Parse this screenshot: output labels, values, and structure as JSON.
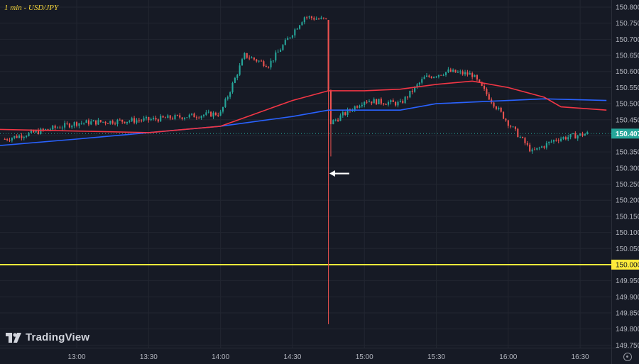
{
  "symbol_label": "1 min - USD/JPY",
  "brand": "TradingView",
  "icons": {
    "logo": "tradingview-logo",
    "settings": "gear-icon",
    "annotation": "arrow-left-icon"
  },
  "colors": {
    "background": "#161a25",
    "grid": "#222631",
    "up": "#26a69a",
    "down": "#ef5350",
    "ma_fast": "#2962ff",
    "ma_slow": "#f23645",
    "level": "#ffeb3b",
    "last_price": "#26a69a"
  },
  "chart_data": {
    "type": "candlestick",
    "title": "1 min - USD/JPY",
    "x_ticks": [
      "13:00",
      "13:30",
      "14:00",
      "14:30",
      "15:00",
      "15:30",
      "16:00",
      "16:30"
    ],
    "y_ticks": [
      "150.800",
      "150.750",
      "150.700",
      "150.650",
      "150.600",
      "150.550",
      "150.500",
      "150.450",
      "150.400",
      "150.350",
      "150.300",
      "150.250",
      "150.200",
      "150.150",
      "150.100",
      "150.050",
      "150.000",
      "149.950",
      "149.900",
      "149.850",
      "149.800",
      "149.750"
    ],
    "ylim": [
      149.742,
      150.822
    ],
    "xlim": [
      "12:28",
      "16:43"
    ],
    "last_price": "150.407",
    "horizontal_level": "150.000",
    "spike": {
      "time": "14:45",
      "open": 150.76,
      "high": 150.76,
      "low": 149.815,
      "close": 150.54
    },
    "ohlc_sampled": [
      {
        "time": "12:30",
        "close": 150.39
      },
      {
        "time": "13:00",
        "close": 150.44
      },
      {
        "time": "13:30",
        "close": 150.45
      },
      {
        "time": "14:00",
        "close": 150.47
      },
      {
        "time": "14:10",
        "close": 150.65
      },
      {
        "time": "14:20",
        "close": 150.62
      },
      {
        "time": "14:35",
        "close": 150.77
      },
      {
        "time": "14:44",
        "close": 150.76
      },
      {
        "time": "14:46",
        "close": 150.44
      },
      {
        "time": "15:00",
        "close": 150.51
      },
      {
        "time": "15:15",
        "close": 150.5
      },
      {
        "time": "15:25",
        "close": 150.58
      },
      {
        "time": "15:35",
        "close": 150.6
      },
      {
        "time": "15:45",
        "close": 150.59
      },
      {
        "time": "16:00",
        "close": 150.44
      },
      {
        "time": "16:10",
        "close": 150.35
      },
      {
        "time": "16:20",
        "close": 150.39
      },
      {
        "time": "16:33",
        "close": 150.407
      }
    ],
    "series": [
      {
        "points": [
          [
            "12:28",
            150.37
          ],
          [
            "13:00",
            150.39
          ],
          [
            "13:30",
            150.41
          ],
          [
            "14:00",
            150.43
          ],
          [
            "14:30",
            150.46
          ],
          [
            "14:45",
            150.48
          ],
          [
            "15:15",
            150.48
          ],
          [
            "15:30",
            150.5
          ],
          [
            "16:00",
            150.51
          ],
          [
            "16:15",
            150.515
          ],
          [
            "16:41",
            150.51
          ]
        ]
      },
      {
        "points": [
          [
            "12:28",
            150.42
          ],
          [
            "13:00",
            150.415
          ],
          [
            "13:30",
            150.41
          ],
          [
            "14:00",
            150.43
          ],
          [
            "14:15",
            150.47
          ],
          [
            "14:30",
            150.51
          ],
          [
            "14:45",
            150.54
          ],
          [
            "15:00",
            150.54
          ],
          [
            "15:15",
            150.545
          ],
          [
            "15:30",
            150.56
          ],
          [
            "15:45",
            150.57
          ],
          [
            "16:00",
            150.55
          ],
          [
            "16:15",
            150.52
          ],
          [
            "16:22",
            150.49
          ],
          [
            "16:41",
            150.48
          ]
        ]
      }
    ],
    "annotations": [
      {
        "type": "arrow",
        "time": "14:46",
        "price": 150.283,
        "direction": "left"
      }
    ]
  }
}
